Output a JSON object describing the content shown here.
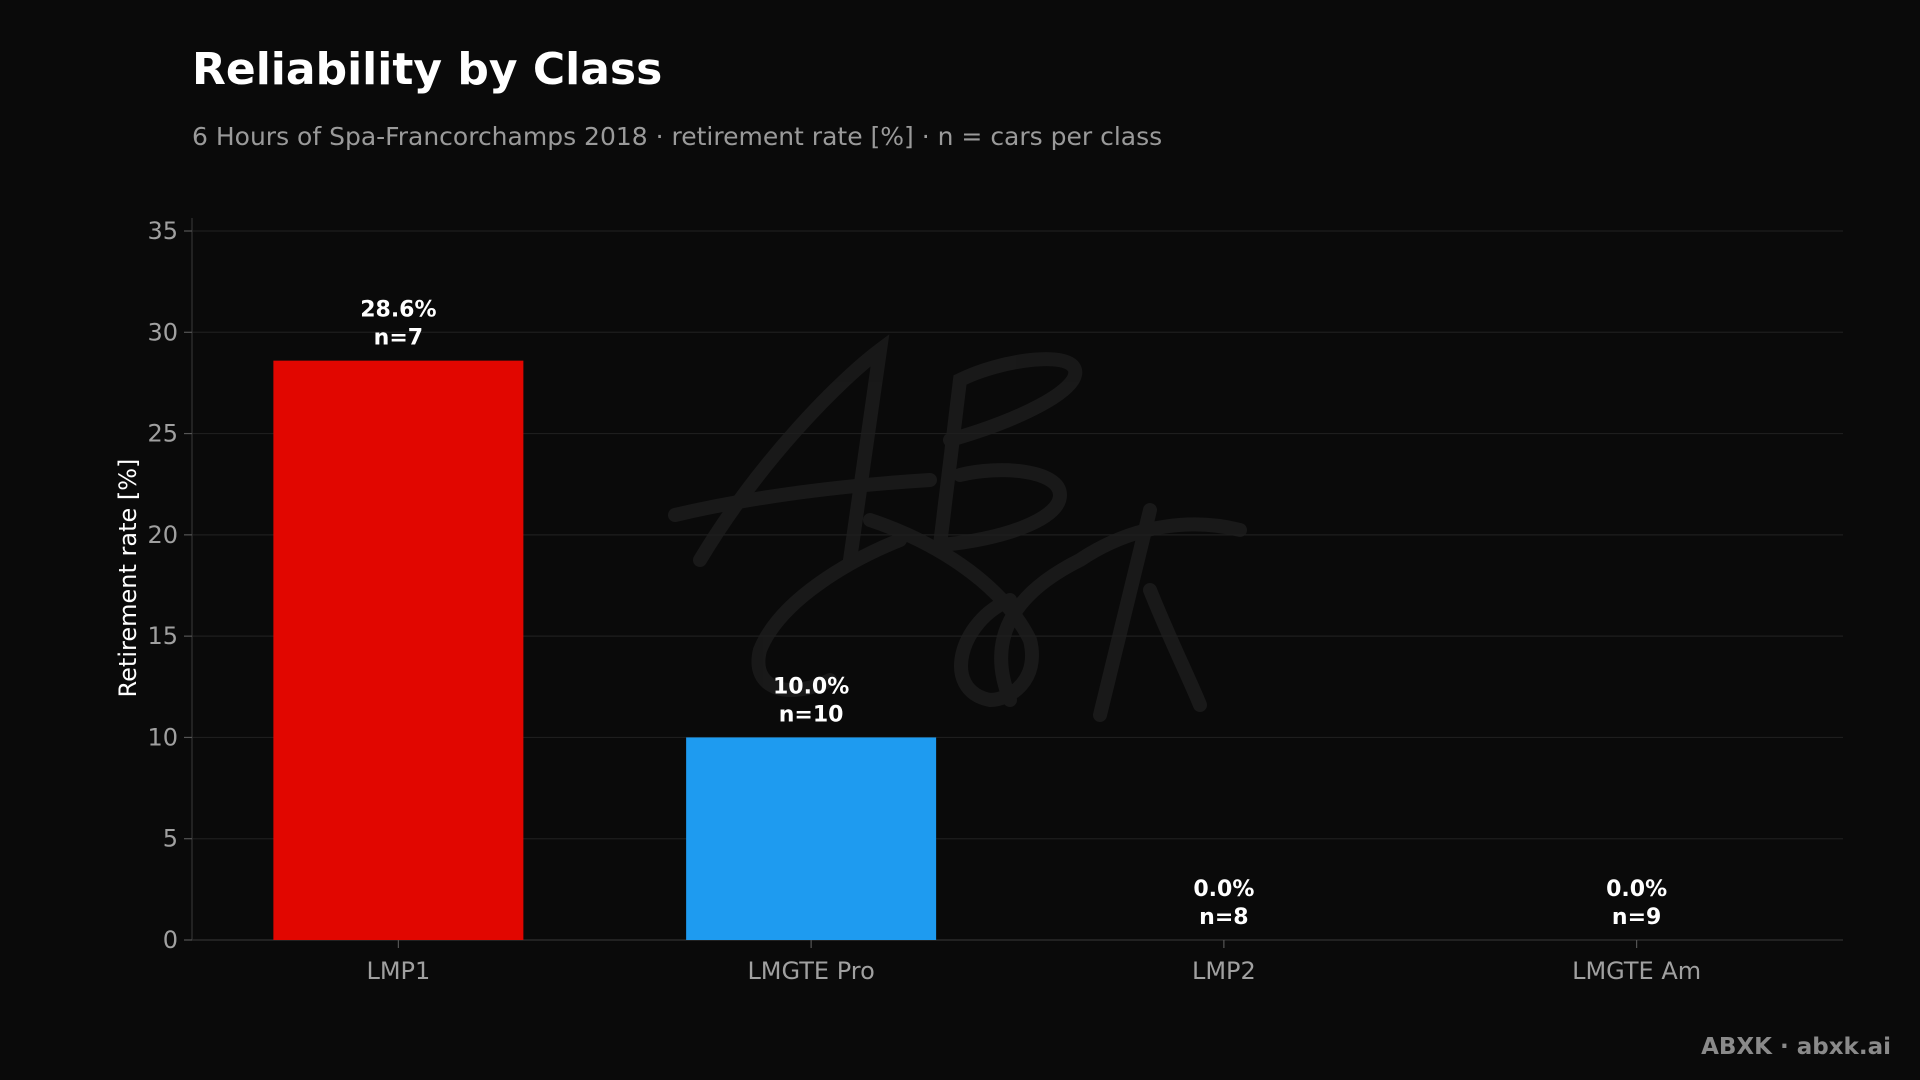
{
  "chart_data": {
    "type": "bar",
    "title": "Reliability by Class",
    "subtitle": "6 Hours of Spa-Francorchamps 2018 · retirement rate [%] · n = cars per class",
    "xlabel": "",
    "ylabel": "Retirement rate [%]",
    "ylim": [
      0,
      35
    ],
    "yticks": [
      0,
      5,
      10,
      15,
      20,
      25,
      30,
      35
    ],
    "categories": [
      "LMP1",
      "LMGTE Pro",
      "LMP2",
      "LMGTE Am"
    ],
    "values": [
      28.6,
      10.0,
      0.0,
      0.0
    ],
    "value_labels": [
      "28.6%",
      "10.0%",
      "0.0%",
      "0.0%"
    ],
    "n_labels": [
      "n=7",
      "n=10",
      "n=8",
      "n=9"
    ],
    "colors": [
      "#e10600",
      "#1e9bf0",
      "#666666",
      "#666666"
    ],
    "grid": true,
    "legend": "none"
  },
  "footer": "ABXK · abxk.ai"
}
